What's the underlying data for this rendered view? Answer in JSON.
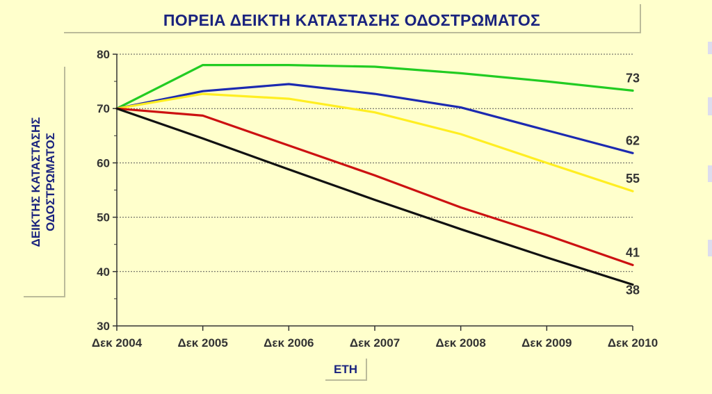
{
  "chart_data": {
    "type": "line",
    "title": "ΠΟΡΕΙΑ ΔΕΙΚΤΗ ΚΑΤΑΣΤΑΣΗΣ ΟΔΟΣΤΡΩΜΑΤΟΣ",
    "ylabel": [
      "ΔΕΙΚΤΗΣ ΚΑΤΑΣΤΑΣΗΣ",
      "ΟΔΟΣΤΡΩΜΑΤΟΣ"
    ],
    "xlabel": "ΕΤΗ",
    "categories": [
      "Δεκ 2004",
      "Δεκ 2005",
      "Δεκ 2006",
      "Δεκ 2007",
      "Δεκ 2008",
      "Δεκ 2009",
      "Δεκ 2010"
    ],
    "ylim": [
      30,
      80
    ],
    "yticks": [
      30,
      40,
      50,
      60,
      70,
      80
    ],
    "grid": true,
    "series": [
      {
        "color": "#22cc22",
        "values": [
          70,
          78,
          78,
          77.7,
          76.5,
          75,
          73.3
        ],
        "end_label": "73"
      },
      {
        "color": "#1c2ab0",
        "values": [
          70,
          73.2,
          74.5,
          72.7,
          70.2,
          66,
          61.8
        ],
        "end_label": "62"
      },
      {
        "color": "#ffee22",
        "values": [
          70,
          72.7,
          71.8,
          69.3,
          65.3,
          60,
          54.8
        ],
        "end_label": "55"
      },
      {
        "color": "#cc1111",
        "values": [
          70,
          68.7,
          63.2,
          57.7,
          51.8,
          46.7,
          41.2
        ],
        "end_label": "41"
      },
      {
        "color": "#111111",
        "values": [
          70,
          64.5,
          58.8,
          53.2,
          47.8,
          42.6,
          37.6
        ],
        "end_label": "38"
      }
    ]
  }
}
